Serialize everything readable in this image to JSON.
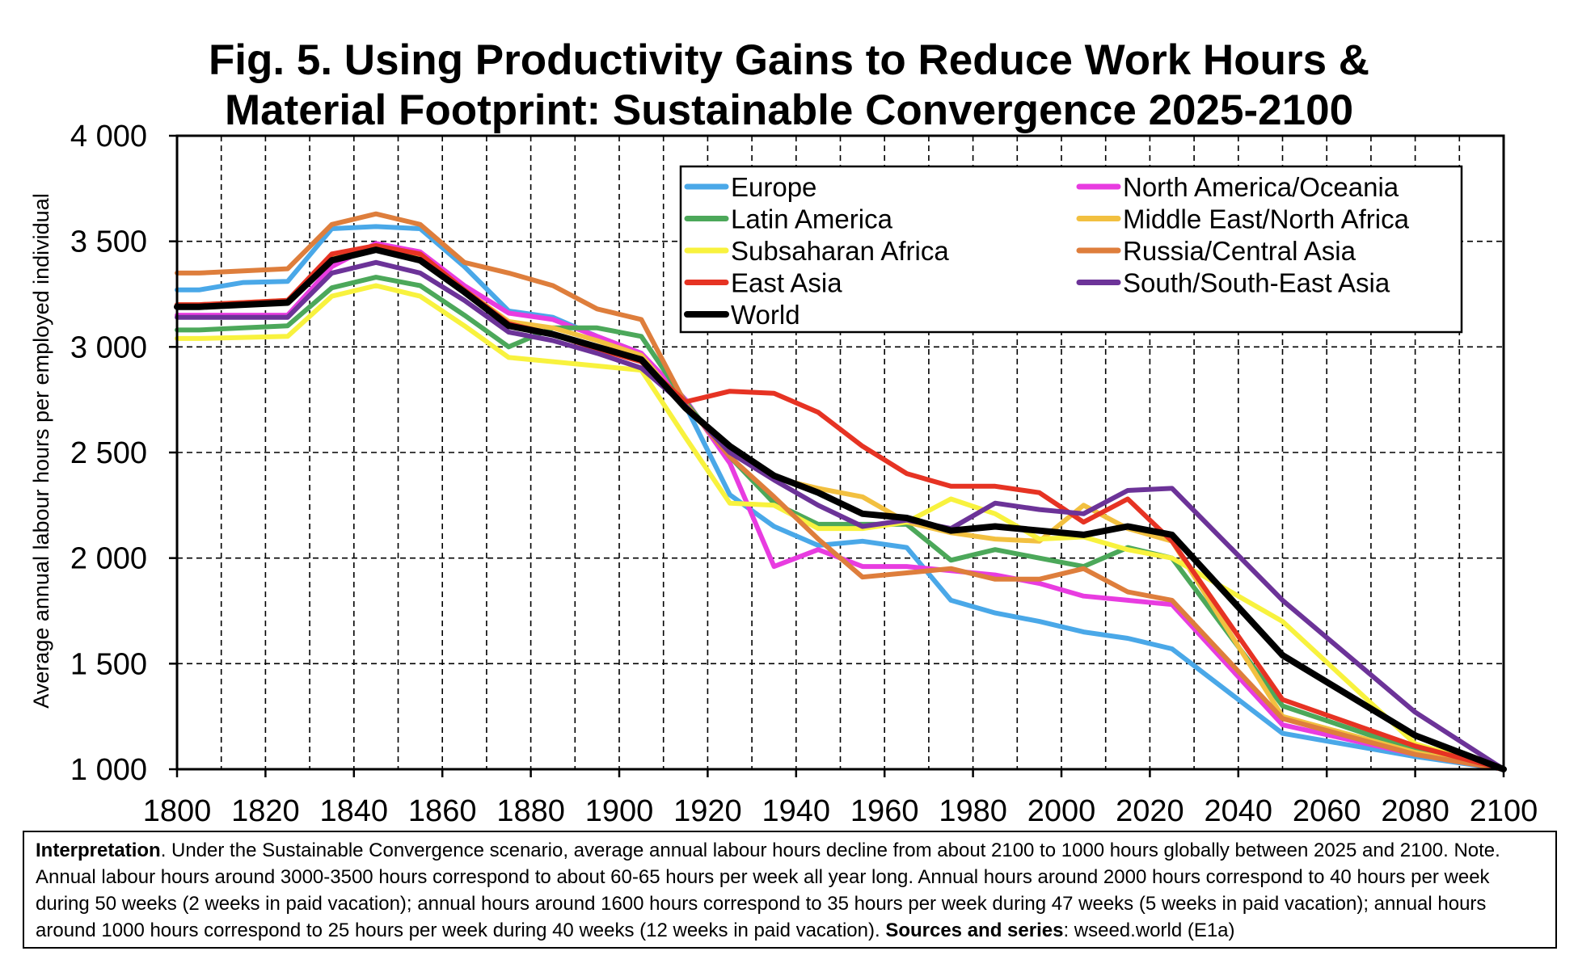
{
  "chart_data": {
    "type": "line",
    "title": [
      "Fig. 5. Using Productivity Gains to Reduce Work Hours &",
      "Material Footprint: Sustainable Convergence 2025-2100"
    ],
    "xlabel": "",
    "ylabel": "Average annual labour hours per employed individual",
    "xlim": [
      1800,
      2100
    ],
    "ylim": [
      1000,
      4000
    ],
    "x_ticks": [
      "1800",
      "1820",
      "1840",
      "1860",
      "1880",
      "1900",
      "1920",
      "1940",
      "1960",
      "1980",
      "2000",
      "2020",
      "2040",
      "2060",
      "2080",
      "2100"
    ],
    "y_ticks": [
      "1 000",
      "1 500",
      "2 000",
      "2 500",
      "3 000",
      "3 500",
      "4 000"
    ],
    "grid": true,
    "legend_position": "top-right",
    "x": [
      1800,
      1805,
      1815,
      1825,
      1835,
      1845,
      1855,
      1865,
      1875,
      1885,
      1895,
      1905,
      1915,
      1925,
      1935,
      1945,
      1955,
      1965,
      1975,
      1985,
      1995,
      2005,
      2015,
      2025,
      2050,
      2080,
      2100
    ],
    "series": [
      {
        "name": "Europe",
        "color": "#4aa8e8",
        "values": [
          3270,
          3270,
          3305,
          3310,
          3560,
          3570,
          3560,
          3380,
          3170,
          3140,
          3050,
          2970,
          2720,
          2300,
          2150,
          2060,
          2080,
          2050,
          1800,
          1740,
          1700,
          1650,
          1620,
          1570,
          1170,
          1060,
          1000
        ]
      },
      {
        "name": "North America/Oceania",
        "color": "#e83ce0",
        "values": [
          3150,
          3150,
          3150,
          3150,
          3380,
          3490,
          3450,
          3290,
          3160,
          3130,
          3050,
          2970,
          2750,
          2450,
          1960,
          2040,
          1960,
          1960,
          1940,
          1920,
          1880,
          1820,
          1800,
          1780,
          1210,
          1070,
          1000
        ]
      },
      {
        "name": "Latin America",
        "color": "#4ca85a",
        "values": [
          3080,
          3080,
          3090,
          3100,
          3280,
          3330,
          3290,
          3150,
          3000,
          3090,
          3090,
          3050,
          2740,
          2480,
          2260,
          2160,
          2160,
          2160,
          1990,
          2040,
          2000,
          1960,
          2050,
          2000,
          1300,
          1090,
          1000
        ]
      },
      {
        "name": "Middle East/North Africa",
        "color": "#f2c040",
        "values": [
          3200,
          3200,
          3210,
          3220,
          3420,
          3460,
          3420,
          3270,
          3120,
          3090,
          3030,
          2960,
          2710,
          2510,
          2380,
          2330,
          2290,
          2170,
          2120,
          2090,
          2080,
          2250,
          2140,
          2080,
          1250,
          1080,
          1000
        ]
      },
      {
        "name": "Subsaharan Africa",
        "color": "#f8f23e",
        "values": [
          3040,
          3040,
          3045,
          3050,
          3240,
          3290,
          3240,
          3100,
          2950,
          2930,
          2910,
          2890,
          2570,
          2260,
          2250,
          2140,
          2140,
          2170,
          2280,
          2210,
          2090,
          2100,
          2040,
          2000,
          1700,
          1120,
          1000
        ]
      },
      {
        "name": "Russia/Central Asia",
        "color": "#de7e3c",
        "values": [
          3350,
          3350,
          3360,
          3370,
          3580,
          3630,
          3580,
          3400,
          3350,
          3290,
          3180,
          3130,
          2730,
          2480,
          2290,
          2090,
          1910,
          1930,
          1950,
          1900,
          1900,
          1950,
          1840,
          1800,
          1240,
          1070,
          1000
        ]
      },
      {
        "name": "East Asia",
        "color": "#e63323",
        "values": [
          3200,
          3200,
          3210,
          3220,
          3440,
          3480,
          3440,
          3270,
          3110,
          3060,
          2990,
          2930,
          2740,
          2790,
          2780,
          2690,
          2530,
          2400,
          2340,
          2340,
          2310,
          2170,
          2280,
          2080,
          1330,
          1110,
          1000
        ]
      },
      {
        "name": "South/South-East Asia",
        "color": "#6c3398",
        "values": [
          3140,
          3140,
          3140,
          3140,
          3350,
          3400,
          3350,
          3220,
          3070,
          3030,
          2970,
          2900,
          2720,
          2500,
          2370,
          2250,
          2150,
          2180,
          2140,
          2260,
          2230,
          2210,
          2320,
          2330,
          1800,
          1270,
          1000
        ]
      },
      {
        "name": "World",
        "color": "#000000",
        "values": [
          3190,
          3190,
          3200,
          3210,
          3410,
          3460,
          3410,
          3260,
          3100,
          3060,
          3000,
          2940,
          2710,
          2530,
          2390,
          2310,
          2210,
          2190,
          2130,
          2150,
          2130,
          2110,
          2150,
          2110,
          1540,
          1160,
          1000
        ]
      }
    ]
  },
  "note": {
    "interpretation_label": "Interpretation",
    "interpretation_text": ". Under the Sustainable Convergence scenario, average annual labour hours decline from about 2100 to 1000 hours globally between 2025 and 2100. Note. Annual labour hours around 3000-3500 hours correspond to about 60-65 hours per week all year long. Annual hours around 2000 hours correspond to 40 hours per week during 50 weeks (2 weeks in paid vacation); annual hours around 1600 hours correspond to 35 hours per week during 47 weeks (5 weeks in paid vacation); annual hours around 1000 hours correspond to 25 hours per week during 40 weeks (12 weeks in paid vacation). ",
    "sources_label": "Sources and series",
    "sources_text": ": wseed.world (E1a)"
  }
}
